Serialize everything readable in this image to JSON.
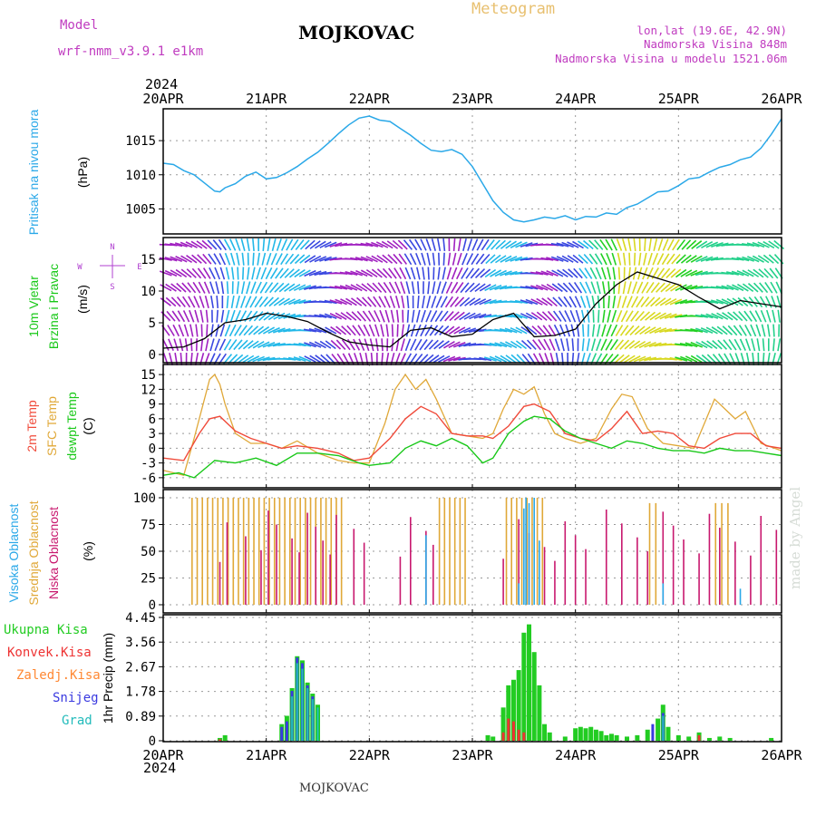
{
  "header": {
    "model_label": "Model",
    "model_name": "wrf-nmm_v3.9.1  e1km",
    "location_title": "MOJKOVAC",
    "meteogram_label": "Meteogram",
    "coords": "lon,lat (19.6E, 42.9N)",
    "altitude": "Nadmorska Visina 848m",
    "model_altitude": "Nadmorska Visina u modelu 1521.06m",
    "year_top": "2024",
    "year_bottom": "2024",
    "footer_name": "MOJKOVAC",
    "credit": "made by Angel"
  },
  "colors": {
    "pressure": "#2aa8e8",
    "wind_line": "#000000",
    "temp2m": "#f04a3a",
    "sfc_temp": "#e0a838",
    "dewpt": "#18c818",
    "high_cloud": "#2aa8e8",
    "mid_cloud": "#e0a838",
    "low_cloud": "#c8186e",
    "total_precip": "#22cc22",
    "conv_precip": "#ee3333",
    "freezing_precip": "#ff8833",
    "snow": "#3a3ae0",
    "graupel": "#22bbbb"
  },
  "chart_data": {
    "type": "line",
    "x_ticks": [
      "20APR",
      "21APR",
      "22APR",
      "23APR",
      "24APR",
      "25APR",
      "26APR"
    ],
    "panels": [
      {
        "id": "pressure",
        "labels": [
          "Pritisak na nivou mora"
        ],
        "unit": "(hPa)",
        "y_ticks": [
          "1015",
          "1010",
          "1005"
        ],
        "y_tick_values": [
          1015,
          1010,
          1005
        ],
        "ylim": [
          1002,
          1019
        ],
        "series": [
          {
            "name": "Pritisak na nivou mora",
            "x": [
              0,
              0.1,
              0.2,
              0.3,
              0.4,
              0.5,
              0.55,
              0.6,
              0.7,
              0.8,
              0.9,
              1.0,
              1.1,
              1.2,
              1.3,
              1.4,
              1.5,
              1.6,
              1.7,
              1.8,
              1.9,
              2.0,
              2.1,
              2.2,
              2.3,
              2.4,
              2.5,
              2.6,
              2.7,
              2.8,
              2.9,
              3.0,
              3.1,
              3.2,
              3.3,
              3.4,
              3.5,
              3.6,
              3.7,
              3.8,
              3.9,
              4.0,
              4.1,
              4.2,
              4.3,
              4.4,
              4.5,
              4.6,
              4.7,
              4.8,
              4.9,
              5.0,
              5.1,
              5.2,
              5.3,
              5.4,
              5.5,
              5.6,
              5.7,
              5.8,
              5.9,
              6.0
            ],
            "y": [
              1011.7,
              1011.5,
              1010.6,
              1010.0,
              1008.8,
              1007.6,
              1007.5,
              1008.1,
              1008.7,
              1009.8,
              1010.4,
              1009.4,
              1009.6,
              1010.3,
              1011.2,
              1012.3,
              1013.3,
              1014.6,
              1016.0,
              1017.3,
              1018.3,
              1018.6,
              1018.0,
              1017.8,
              1016.8,
              1015.8,
              1014.6,
              1013.6,
              1013.4,
              1013.7,
              1013.0,
              1011.2,
              1008.7,
              1006.2,
              1004.5,
              1003.4,
              1003.1,
              1003.4,
              1003.8,
              1003.6,
              1004.0,
              1003.4,
              1003.9,
              1003.8,
              1004.4,
              1004.2,
              1005.2,
              1005.7,
              1006.6,
              1007.5,
              1007.6,
              1008.4,
              1009.4,
              1009.6,
              1010.4,
              1011.1,
              1011.5,
              1012.2,
              1012.6,
              1013.9,
              1015.9,
              1018.2
            ]
          }
        ]
      },
      {
        "id": "wind",
        "labels": [
          "10m Vjetar",
          "Brzina i Pravac"
        ],
        "unit": "(m/s)",
        "compass": {
          "n": "N",
          "s": "S",
          "e": "E",
          "w": "W"
        },
        "y_ticks": [
          "15",
          "10",
          "5",
          "0"
        ],
        "y_tick_values": [
          15,
          10,
          5,
          0
        ],
        "ylim": [
          -1,
          18
        ],
        "series": [
          {
            "name": "10m Vjetar",
            "x": [
              0,
              0.2,
              0.4,
              0.6,
              0.8,
              1.0,
              1.2,
              1.4,
              1.6,
              1.8,
              2.0,
              2.2,
              2.4,
              2.6,
              2.8,
              3.0,
              3.2,
              3.4,
              3.6,
              3.8,
              4.0,
              4.2,
              4.4,
              4.6,
              4.8,
              5.0,
              5.2,
              5.4,
              5.6,
              5.8,
              6.0
            ],
            "y": [
              1.0,
              1.2,
              2.5,
              5.0,
              5.5,
              6.5,
              6.0,
              5.2,
              3.5,
              2.0,
              1.5,
              1.2,
              3.8,
              4.2,
              2.8,
              3.2,
              5.5,
              6.5,
              2.8,
              3.0,
              4.0,
              8.0,
              11.0,
              13.0,
              12.0,
              11.0,
              9.0,
              7.2,
              8.5,
              8.0,
              7.5
            ]
          }
        ],
        "direction_color_scale": [
          {
            "speed": 1,
            "color": "#a020c0"
          },
          {
            "speed": 3,
            "color": "#3a48e0"
          },
          {
            "speed": 5,
            "color": "#22b8e8"
          },
          {
            "speed": 7,
            "color": "#22d08a"
          },
          {
            "speed": 9,
            "color": "#22d022"
          },
          {
            "speed": 11,
            "color": "#d8d820"
          },
          {
            "speed": 13,
            "color": "#f07020"
          },
          {
            "speed": 15,
            "color": "#e83020"
          }
        ]
      },
      {
        "id": "temperature",
        "labels": [
          "2m Temp",
          "SFC Temp",
          "dewpt Temp"
        ],
        "unit": "(C)",
        "y_ticks": [
          "15",
          "12",
          "9",
          "6",
          "3",
          "0",
          "-3",
          "-6"
        ],
        "y_tick_values": [
          15,
          12,
          9,
          6,
          3,
          0,
          -3,
          -6
        ],
        "ylim": [
          -7.5,
          16.5
        ],
        "series": [
          {
            "name": "2m Temp",
            "x": [
              0,
              0.2,
              0.35,
              0.45,
              0.55,
              0.7,
              0.85,
              1.0,
              1.15,
              1.3,
              1.5,
              1.7,
              1.85,
              2.0,
              2.2,
              2.35,
              2.5,
              2.65,
              2.8,
              2.95,
              3.1,
              3.2,
              3.35,
              3.5,
              3.6,
              3.75,
              3.9,
              4.05,
              4.2,
              4.35,
              4.5,
              4.65,
              4.8,
              4.95,
              5.1,
              5.25,
              5.4,
              5.55,
              5.7,
              5.85,
              6.0
            ],
            "y": [
              -2.0,
              -2.5,
              3.0,
              6.0,
              6.5,
              3.5,
              2.0,
              1.0,
              0.0,
              0.5,
              0.0,
              -1.0,
              -2.5,
              -2.0,
              2.0,
              6.0,
              8.5,
              7.0,
              3.0,
              2.5,
              2.5,
              2.0,
              4.5,
              8.5,
              9.0,
              7.5,
              3.0,
              2.0,
              1.5,
              4.0,
              7.5,
              3.0,
              3.5,
              3.0,
              0.5,
              0.0,
              2.0,
              3.0,
              3.0,
              0.5,
              0.0
            ]
          },
          {
            "name": "SFC Temp",
            "x": [
              0,
              0.2,
              0.3,
              0.4,
              0.45,
              0.5,
              0.55,
              0.6,
              0.7,
              0.85,
              1.0,
              1.15,
              1.3,
              1.5,
              1.7,
              1.85,
              2.0,
              2.15,
              2.25,
              2.35,
              2.45,
              2.55,
              2.65,
              2.8,
              2.95,
              3.1,
              3.2,
              3.3,
              3.4,
              3.5,
              3.6,
              3.7,
              3.8,
              3.9,
              4.05,
              4.2,
              4.35,
              4.45,
              4.55,
              4.7,
              4.85,
              5.0,
              5.15,
              5.25,
              5.35,
              5.45,
              5.55,
              5.65,
              5.8,
              6.0
            ],
            "y": [
              -4.5,
              -5.5,
              2.0,
              10.0,
              14.0,
              15.0,
              13.0,
              9.0,
              3.0,
              1.0,
              1.0,
              0.0,
              1.5,
              -1.0,
              -2.5,
              -3.0,
              -3.0,
              5.0,
              12.0,
              15.0,
              12.0,
              14.0,
              10.0,
              3.0,
              2.5,
              2.0,
              3.0,
              8.0,
              12.0,
              11.0,
              12.5,
              7.0,
              3.0,
              2.0,
              1.0,
              2.0,
              8.0,
              11.0,
              10.5,
              4.0,
              1.0,
              0.5,
              0.0,
              5.0,
              10.0,
              8.0,
              6.0,
              7.5,
              1.0,
              -0.5
            ]
          },
          {
            "name": "dewpt Temp",
            "x": [
              0,
              0.15,
              0.3,
              0.5,
              0.7,
              0.9,
              1.1,
              1.3,
              1.5,
              1.7,
              1.9,
              2.0,
              2.2,
              2.35,
              2.5,
              2.65,
              2.8,
              2.95,
              3.1,
              3.2,
              3.35,
              3.5,
              3.6,
              3.75,
              3.9,
              4.05,
              4.2,
              4.35,
              4.5,
              4.65,
              4.8,
              4.95,
              5.1,
              5.25,
              5.4,
              5.55,
              5.7,
              5.85,
              6.0
            ],
            "y": [
              -5.5,
              -5.0,
              -6.0,
              -2.5,
              -3.0,
              -2.0,
              -3.5,
              -1.0,
              -1.0,
              -1.5,
              -3.0,
              -3.5,
              -3.0,
              0.0,
              1.5,
              0.5,
              2.0,
              0.5,
              -3.0,
              -2.0,
              3.0,
              5.5,
              6.5,
              6.0,
              3.5,
              2.0,
              1.0,
              0.0,
              1.5,
              1.0,
              0.0,
              -0.5,
              -0.5,
              -1.0,
              0.0,
              -0.5,
              -0.5,
              -1.0,
              -1.5
            ]
          }
        ]
      },
      {
        "id": "clouds",
        "labels": [
          "Visoka Oblacnost",
          "Srednja Oblacnost",
          "Niska Oblacnost"
        ],
        "unit": "(%)",
        "y_ticks": [
          "100",
          "75",
          "50",
          "25",
          "0"
        ],
        "y_tick_values": [
          100,
          75,
          50,
          25,
          0
        ],
        "ylim": [
          0,
          100
        ]
      },
      {
        "id": "precip",
        "labels": [
          "Ukupna Kisa",
          "Konvek.Kisa",
          "Zaledj.Kisa",
          "Snijeg",
          "Grad"
        ],
        "unit": "1hr Precip (mm)",
        "y_ticks": [
          "4.45",
          "3.56",
          "2.67",
          "1.78",
          "0.89",
          "0"
        ],
        "y_tick_values": [
          4.45,
          3.56,
          2.67,
          1.78,
          0.89,
          0
        ],
        "ylim": [
          0,
          4.45
        ],
        "total": {
          "x": [
            0.55,
            0.6,
            1.15,
            1.2,
            1.25,
            1.3,
            1.35,
            1.4,
            1.45,
            1.5,
            3.15,
            3.2,
            3.3,
            3.35,
            3.4,
            3.45,
            3.5,
            3.55,
            3.6,
            3.65,
            3.7,
            3.75,
            3.9,
            4.0,
            4.05,
            4.1,
            4.15,
            4.2,
            4.25,
            4.3,
            4.35,
            4.4,
            4.5,
            4.6,
            4.7,
            4.8,
            4.85,
            4.9,
            5.0,
            5.1,
            5.2,
            5.3,
            5.4,
            5.5,
            5.9
          ],
          "values": [
            0.1,
            0.2,
            0.6,
            0.9,
            1.9,
            3.05,
            2.9,
            2.1,
            1.7,
            1.3,
            0.2,
            0.15,
            1.2,
            2.0,
            2.2,
            2.55,
            3.9,
            4.2,
            3.2,
            2.0,
            0.6,
            0.3,
            0.15,
            0.45,
            0.5,
            0.45,
            0.5,
            0.4,
            0.35,
            0.2,
            0.25,
            0.2,
            0.15,
            0.2,
            0.4,
            0.8,
            1.3,
            0.5,
            0.2,
            0.15,
            0.3,
            0.1,
            0.15,
            0.1,
            0.1
          ]
        },
        "convective": {
          "x": [
            0.55,
            3.3,
            3.35,
            3.4,
            3.45,
            3.5,
            5.2
          ],
          "values": [
            0.05,
            0.3,
            0.8,
            0.7,
            0.4,
            0.3,
            0.2
          ]
        },
        "snow": {
          "x": [
            1.15,
            1.2,
            1.25,
            1.3,
            1.35,
            1.4,
            1.45,
            4.75,
            4.85
          ],
          "values": [
            0.5,
            0.7,
            1.8,
            3.0,
            2.8,
            2.0,
            1.6,
            0.6,
            1.0
          ]
        },
        "graupel": {
          "x": [
            1.25,
            1.3,
            1.35,
            1.4,
            1.45,
            1.5,
            4.85
          ],
          "values": [
            1.6,
            2.8,
            2.6,
            1.9,
            1.5,
            1.2,
            0.9
          ]
        }
      }
    ]
  }
}
